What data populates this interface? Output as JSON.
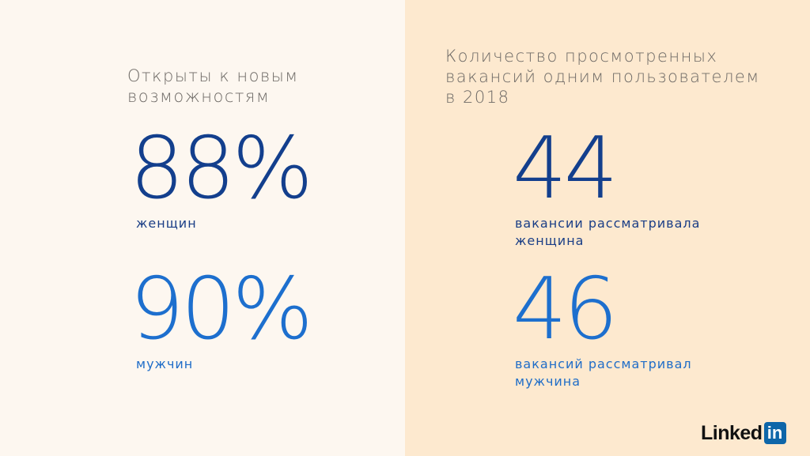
{
  "left": {
    "heading_lines": [
      "Открыты к новым",
      "возможностям"
    ],
    "stats": [
      {
        "value": "88%",
        "label_lines": [
          "женщин"
        ],
        "tone": "dark"
      },
      {
        "value": "90%",
        "label_lines": [
          "мужчин"
        ],
        "tone": "light"
      }
    ]
  },
  "right": {
    "heading_lines": [
      "Количество просмотренных",
      "вакансий одним пользователем",
      "в 2018"
    ],
    "stats": [
      {
        "value": "44",
        "label_lines": [
          "вакансии рассматривала",
          "женщина"
        ],
        "tone": "dark"
      },
      {
        "value": "46",
        "label_lines": [
          "вакансий рассматривал",
          "мужчина"
        ],
        "tone": "light"
      }
    ]
  },
  "logo": {
    "word": "Linked",
    "box": "in"
  },
  "colors": {
    "left_bg": "#fdf7f0",
    "right_bg": "#fde9cf",
    "dark_blue": "#133f8d",
    "light_blue": "#1d6fce",
    "heading_gray": "#6e6a66",
    "logo_blue": "#0e66a9"
  }
}
